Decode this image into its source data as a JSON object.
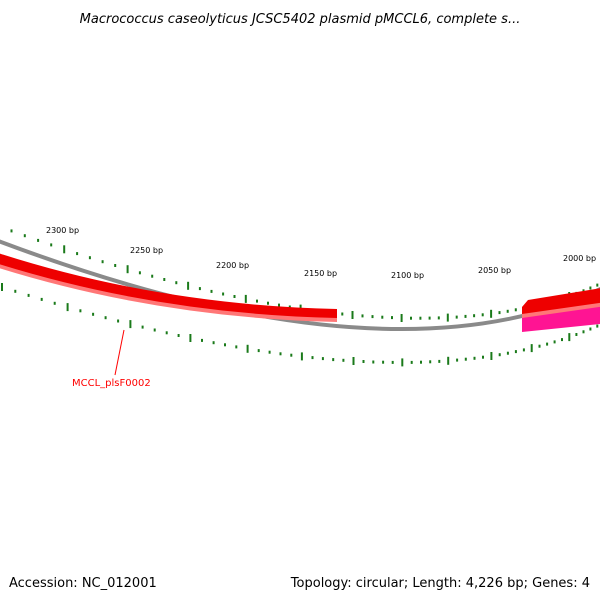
{
  "title": "Macrococcus caseolyticus JCSC5402 plasmid pMCCL6, complete s...",
  "accession_text": "Accession: NC_012001",
  "summary_text": "Topology: circular; Length: 4,226 bp; Genes: 4",
  "colors": {
    "backbone": "#8a8a8a",
    "tick": "#1a7a1a",
    "gene_forward": "#ee0000",
    "gene_forward_light": "#ff7777",
    "gene_reverse": "#ff1493",
    "gene_label": "#ff0000"
  },
  "ruler_labels": [
    {
      "bp": 2300,
      "text": "2300 bp"
    },
    {
      "bp": 2250,
      "text": "2250 bp"
    },
    {
      "bp": 2200,
      "text": "2200 bp"
    },
    {
      "bp": 2150,
      "text": "2150 bp"
    },
    {
      "bp": 2100,
      "text": "2100 bp"
    },
    {
      "bp": 2050,
      "text": "2050 bp"
    },
    {
      "bp": 2000,
      "text": "2000 bp"
    }
  ],
  "genes": [
    {
      "name": "MCCL_plsF0002",
      "strand": "+",
      "label": "MCCL_plsF0002"
    },
    {
      "name": "",
      "strand": "+",
      "label": ""
    },
    {
      "name": "",
      "strand": "-",
      "label": ""
    }
  ]
}
